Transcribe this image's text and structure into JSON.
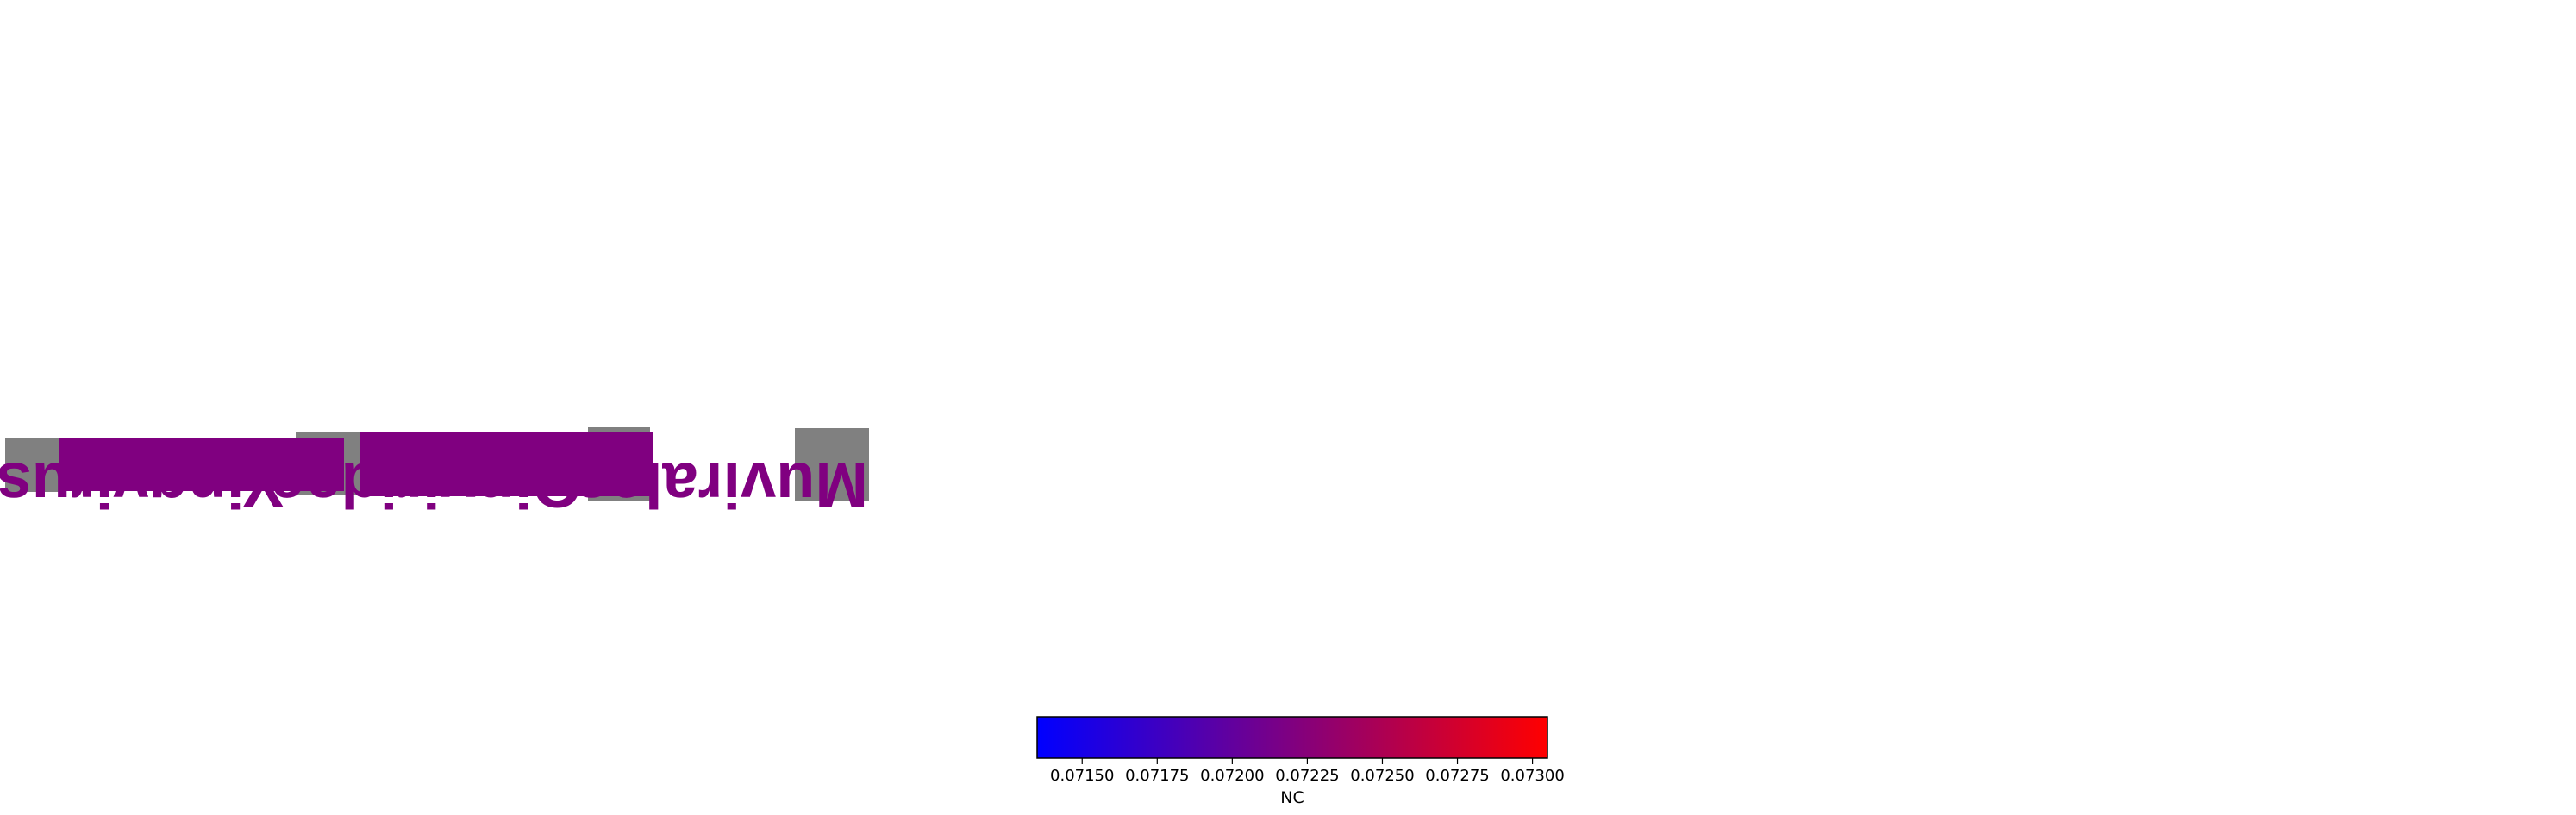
{
  "taxa": [
    {
      "name": "Muvirales",
      "color": "#800080"
    },
    {
      "name": "Qinviridae",
      "color": "#800080"
    },
    {
      "name": "Yingvirus",
      "color": "#800080"
    }
  ],
  "colors": {
    "unassigned": "#808080",
    "label": "#800080",
    "cmap_low": "#0000ff",
    "cmap_mid": "#800080",
    "cmap_high": "#ff0000"
  },
  "colorbar": {
    "label": "NC",
    "ticks": [
      "0.07150",
      "0.07175",
      "0.07200",
      "0.07225",
      "0.07250",
      "0.07275",
      "0.07300"
    ],
    "vmin": 0.07135,
    "vmax": 0.07305
  }
}
